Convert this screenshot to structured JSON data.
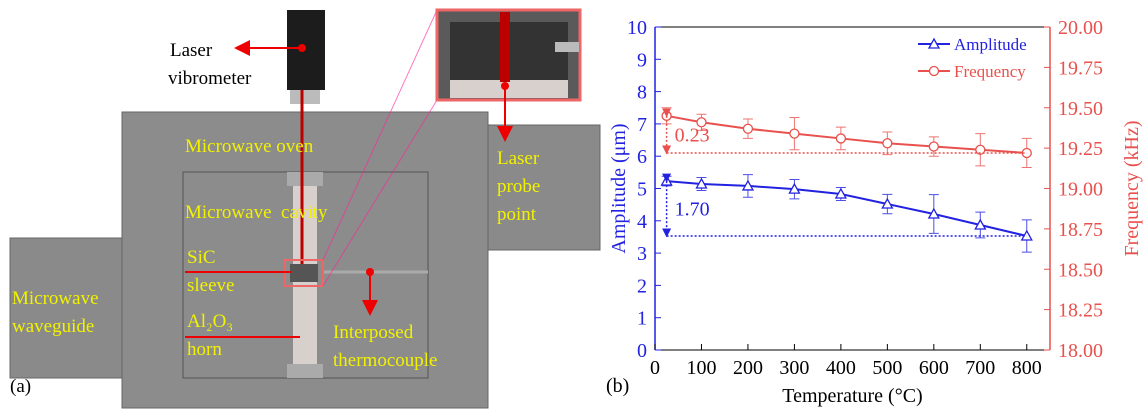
{
  "diagram": {
    "panel_label": "(a)",
    "laser_vibrometer": [
      "Laser",
      "vibrometer"
    ],
    "microwave_oven": "Microwave oven",
    "microwave_cavity": "Microwave  cavity",
    "laser_probe_point": [
      "Laser",
      "probe",
      "point"
    ],
    "microwave_waveguide": [
      "Microwave",
      "waveguide"
    ],
    "sic_sleeve": [
      "SiC",
      "sleeve"
    ],
    "al2o3_horn": [
      "Al₂O₃",
      "horn"
    ],
    "interposed_thermocouple": [
      "Interposed",
      "thermocouple"
    ]
  },
  "chart_data": {
    "type": "line",
    "panel_label": "(b)",
    "x_label": "Temperature (°C)",
    "y_label": "Amplitude (μm)",
    "y2_label": "Frequency (kHz)",
    "x": [
      25,
      100,
      200,
      300,
      400,
      500,
      600,
      700,
      800
    ],
    "xlim": [
      0,
      850
    ],
    "xticks": [
      0,
      100,
      200,
      300,
      400,
      500,
      600,
      700,
      800
    ],
    "ylim": [
      0,
      10
    ],
    "yticks": [
      0,
      1,
      2,
      3,
      4,
      5,
      6,
      7,
      8,
      9,
      10
    ],
    "y2lim": [
      18,
      20
    ],
    "y2ticks": [
      {
        "value": 18,
        "label": "18.00"
      },
      18.25,
      {
        "value": 18.5,
        "label": "18.50"
      },
      18.75,
      {
        "value": 19,
        "label": "19.00"
      },
      19.25,
      {
        "value": 19.5,
        "label": "19.50"
      },
      19.75,
      {
        "value": 20,
        "label": "20.00"
      }
    ],
    "legend": "top-right",
    "series": [
      {
        "name": "Amplitude",
        "color": "#2222e0",
        "marker": "triangle",
        "axis": "y",
        "values": [
          5.23,
          5.14,
          5.08,
          4.98,
          4.83,
          4.52,
          4.21,
          3.87,
          3.53
        ],
        "errors": [
          0.15,
          0.2,
          0.35,
          0.3,
          0.2,
          0.3,
          0.6,
          0.4,
          0.5
        ]
      },
      {
        "name": "Frequency",
        "color": "#e8514d",
        "marker": "circle",
        "axis": "y2",
        "values": [
          19.45,
          19.41,
          19.37,
          19.34,
          19.31,
          19.28,
          19.26,
          19.24,
          19.22
        ],
        "errors": [
          0.05,
          0.05,
          0.06,
          0.1,
          0.07,
          0.07,
          0.06,
          0.1,
          0.09
        ]
      }
    ],
    "annotations": [
      {
        "text": "1.70",
        "series": 0
      },
      {
        "text": "0.23",
        "series": 1
      }
    ]
  }
}
